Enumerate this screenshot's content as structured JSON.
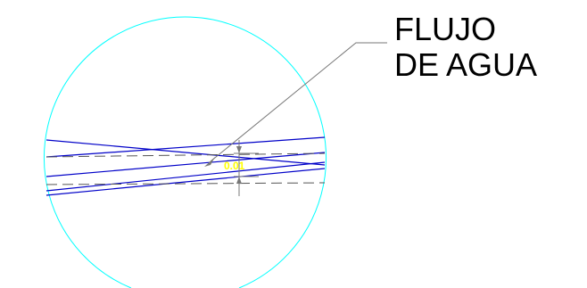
{
  "annotation": {
    "line1": "FLUJO",
    "line2": "DE AGUA"
  },
  "dimension": {
    "value_label": "0.01"
  },
  "colors": {
    "circle": "#00ffff",
    "pipe_lines": "#0000c8",
    "centerlines": "#555555",
    "leader": "#777777",
    "dimension_text": "#ffff00",
    "label": "#000000"
  }
}
